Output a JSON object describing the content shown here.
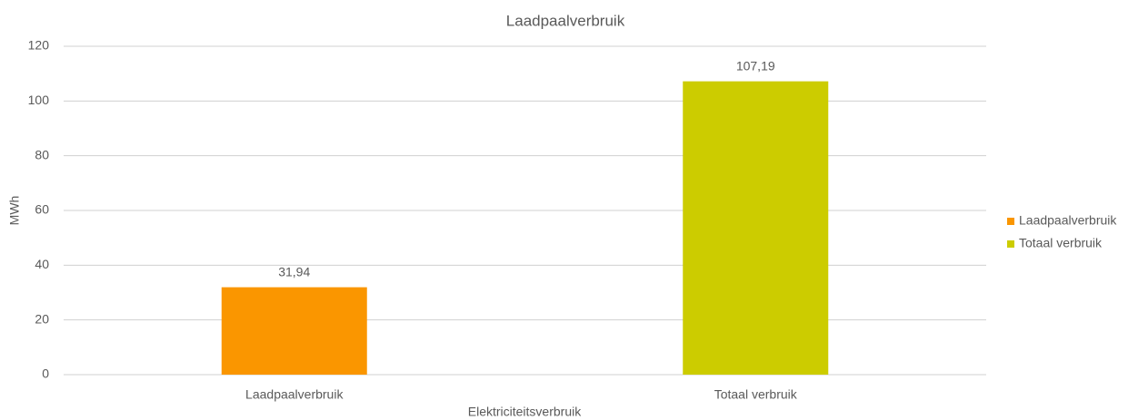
{
  "chart_data": {
    "type": "bar",
    "title": "Laadpaalverbruik",
    "x_label": "Elektriciteitsverbruik",
    "y_label": "MWh",
    "categories": [
      "Laadpaalverbruik",
      "Totaal verbruik"
    ],
    "values": [
      31.94,
      107.19
    ],
    "value_labels": [
      "31,94",
      "107,19"
    ],
    "colors": [
      "#fa9600",
      "#cccc00"
    ],
    "ylim": [
      0,
      120
    ],
    "yticks": [
      0,
      20,
      40,
      60,
      80,
      100,
      120
    ],
    "grid": true,
    "legend": "right"
  }
}
